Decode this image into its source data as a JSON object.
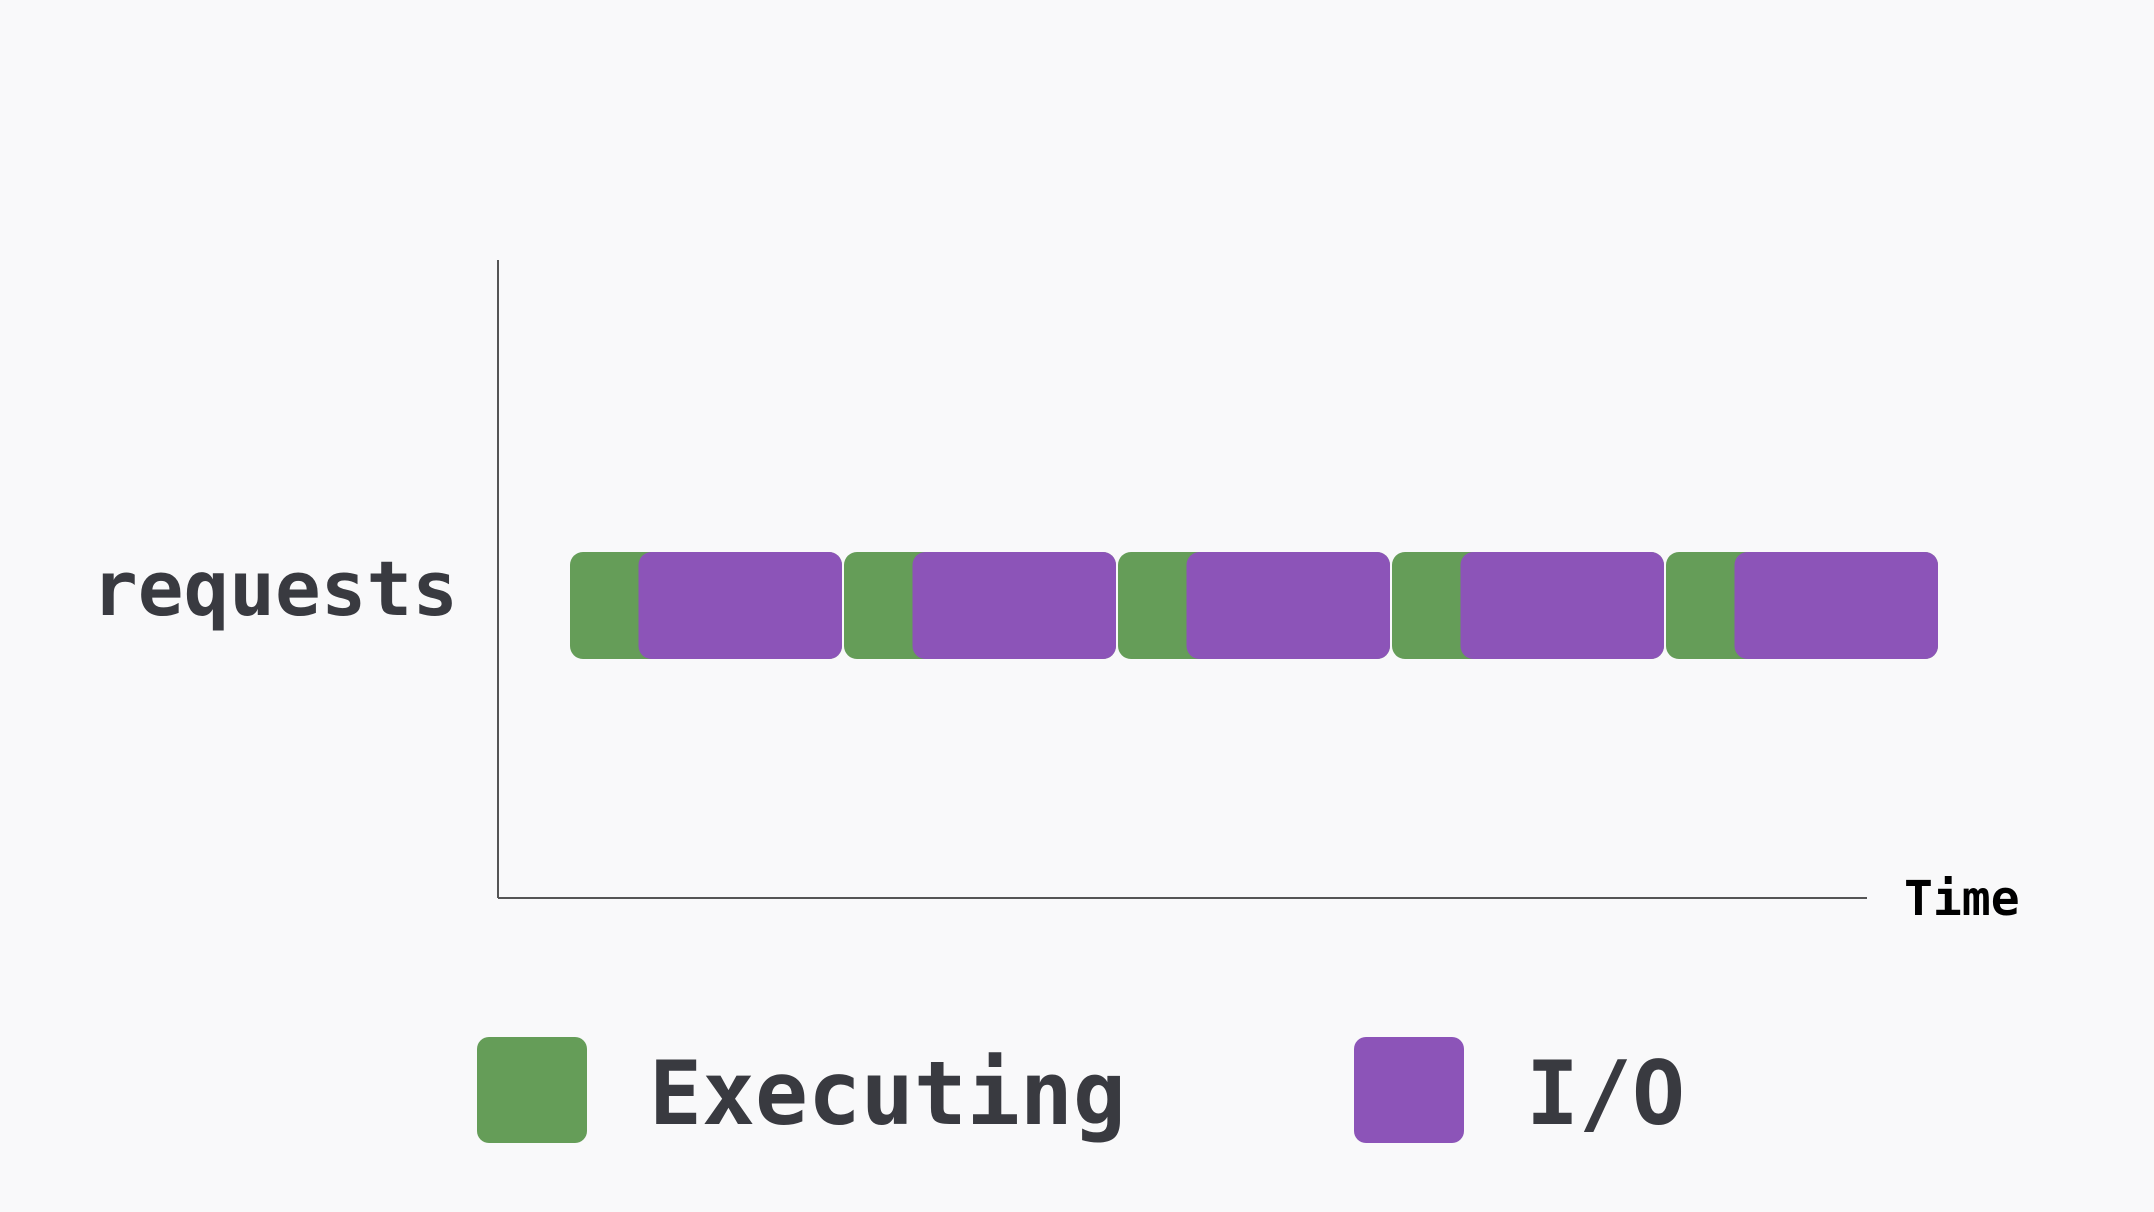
{
  "chart_data": {
    "type": "timeline",
    "row_label": "requests",
    "x_axis_label": "Time",
    "colors": {
      "executing": "#659d58",
      "io": "#8c54b8",
      "axis": "#555555",
      "text": "#393a40",
      "background": "#f9f9fa"
    },
    "segments": [
      {
        "start": 0,
        "exec_end": 0.25,
        "end": 1
      },
      {
        "start": 1,
        "exec_end": 1.25,
        "end": 2
      },
      {
        "start": 2,
        "exec_end": 2.25,
        "end": 3
      },
      {
        "start": 3,
        "exec_end": 3.25,
        "end": 4
      },
      {
        "start": 4,
        "exec_end": 4.25,
        "end": 5
      }
    ],
    "legend": [
      {
        "key": "executing",
        "label": "Executing"
      },
      {
        "key": "io",
        "label": "I/O"
      }
    ]
  }
}
